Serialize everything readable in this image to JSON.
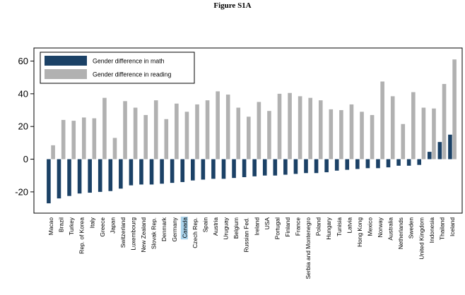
{
  "figure_title": "Figure S1A",
  "chart_data": {
    "type": "bar",
    "title": "Figure S1A",
    "xlabel": "",
    "ylabel": "",
    "ylim": [
      -33,
      68
    ],
    "yticks": [
      -20,
      0,
      20,
      40,
      60
    ],
    "grid": false,
    "legend_position": "top-left",
    "highlighted_category": "Canada",
    "categories": [
      "Macao",
      "Brazil",
      "Turkey",
      "Rep. of Korea",
      "Italy",
      "Greece",
      "Japan",
      "Switzerland",
      "Luxembourg",
      "New Zealand",
      "Slovak Rep.",
      "Denmark",
      "Germany",
      "Canada",
      "Czech Rep.",
      "Spain",
      "Austria",
      "Uruguay",
      "Belgium",
      "Russian Fed.",
      "Ireland",
      "USA",
      "Portugal",
      "Finland",
      "France",
      "Serbia and Montenegro",
      "Poland",
      "Hungary",
      "Tunisia",
      "Latvia",
      "Hong Kong",
      "Mexico",
      "Norway",
      "Australia",
      "Netherlands",
      "Sweden",
      "United Kingdom",
      "Indonesia",
      "Thailand",
      "Iceland"
    ],
    "series": [
      {
        "name": "Gender difference in math",
        "color": "#1b4166",
        "values": [
          -27,
          -24,
          -22.5,
          -21,
          -20.5,
          -20,
          -19.5,
          -18,
          -16,
          -15.5,
          -15.5,
          -15,
          -14.5,
          -14,
          -13,
          -12.5,
          -12,
          -12,
          -11.5,
          -11,
          -10.5,
          -10,
          -10,
          -9.5,
          -9,
          -8.5,
          -8.5,
          -8,
          -7,
          -6.5,
          -6,
          -5.5,
          -5.5,
          -5,
          -4,
          -4,
          -3.5,
          4.5,
          10.5,
          15
        ]
      },
      {
        "name": "Gender difference in reading",
        "color": "#b1b1b1",
        "values": [
          8.5,
          24,
          23.5,
          25.5,
          25,
          37.5,
          13,
          35.5,
          31.5,
          27,
          36,
          24.5,
          34,
          29,
          33.5,
          36,
          41.5,
          39.5,
          31.5,
          26,
          35,
          29.5,
          40,
          40.5,
          38.5,
          37.5,
          36,
          30.5,
          30,
          33.5,
          29,
          27,
          47.5,
          38.5,
          21.5,
          41,
          31.5,
          31,
          46,
          61
        ]
      }
    ]
  }
}
